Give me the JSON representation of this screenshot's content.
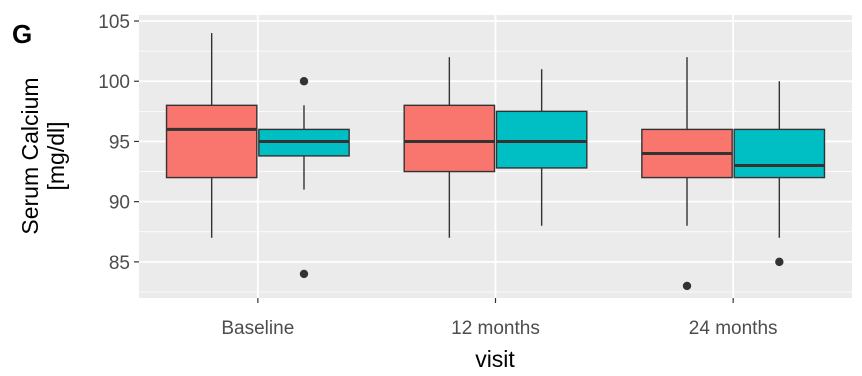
{
  "panel_label": "G",
  "chart_data": {
    "type": "boxplot",
    "xlabel": "visit",
    "ylabel_line1": "Serum Calcium",
    "ylabel_line2": "[mg/dl]",
    "ylim": [
      82,
      105.5
    ],
    "yticks": [
      85,
      90,
      95,
      100,
      105
    ],
    "categories": [
      "Baseline",
      "12 months",
      "24 months"
    ],
    "legend": "none",
    "grid": true,
    "series_colors": [
      "#F8766D",
      "#00BFC4"
    ],
    "groups": [
      {
        "category": "Baseline",
        "boxes": [
          {
            "series": 0,
            "lower_whisker": 87,
            "q1": 92,
            "median": 96,
            "q3": 98,
            "upper_whisker": 104,
            "outliers": []
          },
          {
            "series": 1,
            "lower_whisker": 91,
            "q1": 93.8,
            "median": 95,
            "q3": 96,
            "upper_whisker": 98,
            "outliers": [
              100,
              84
            ]
          }
        ]
      },
      {
        "category": "12 months",
        "boxes": [
          {
            "series": 0,
            "lower_whisker": 87,
            "q1": 92.5,
            "median": 95,
            "q3": 98,
            "upper_whisker": 102,
            "outliers": []
          },
          {
            "series": 1,
            "lower_whisker": 88,
            "q1": 92.8,
            "median": 95,
            "q3": 97.5,
            "upper_whisker": 101,
            "outliers": []
          }
        ]
      },
      {
        "category": "24 months",
        "boxes": [
          {
            "series": 0,
            "lower_whisker": 88,
            "q1": 92,
            "median": 94,
            "q3": 96,
            "upper_whisker": 102,
            "outliers": [
              83
            ]
          },
          {
            "series": 1,
            "lower_whisker": 87,
            "q1": 92,
            "median": 93,
            "q3": 96,
            "upper_whisker": 100,
            "outliers": [
              85
            ]
          }
        ]
      }
    ]
  }
}
